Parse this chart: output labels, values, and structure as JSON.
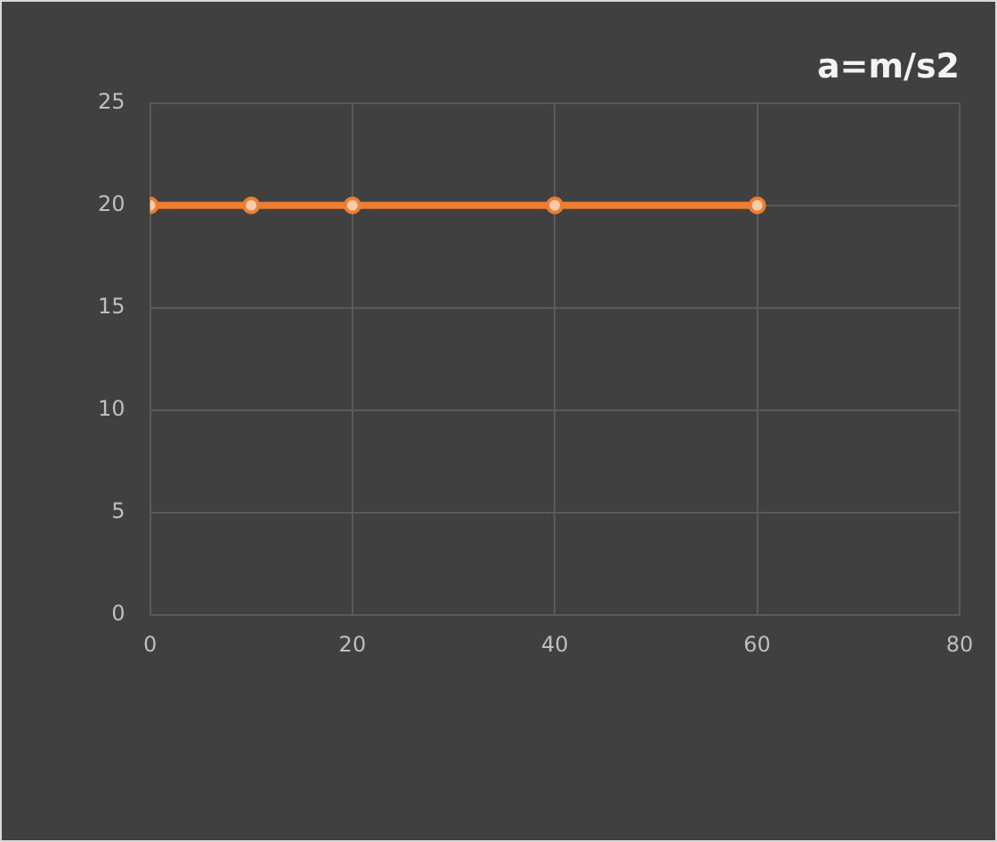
{
  "chart_data": {
    "type": "line",
    "title": "a=m/s2",
    "x": [
      0,
      10,
      20,
      40,
      60
    ],
    "series": [
      {
        "color": "#ed7d31",
        "values": [
          20,
          20,
          20,
          20,
          20
        ]
      }
    ],
    "xlim": [
      0,
      80
    ],
    "xticks": [
      0,
      20,
      40,
      60,
      80
    ],
    "ylim": [
      0,
      25
    ],
    "yticks": [
      0,
      5,
      10,
      15,
      20,
      25
    ],
    "grid": true,
    "marker": "circle",
    "line_style": "solid",
    "legend": false
  }
}
